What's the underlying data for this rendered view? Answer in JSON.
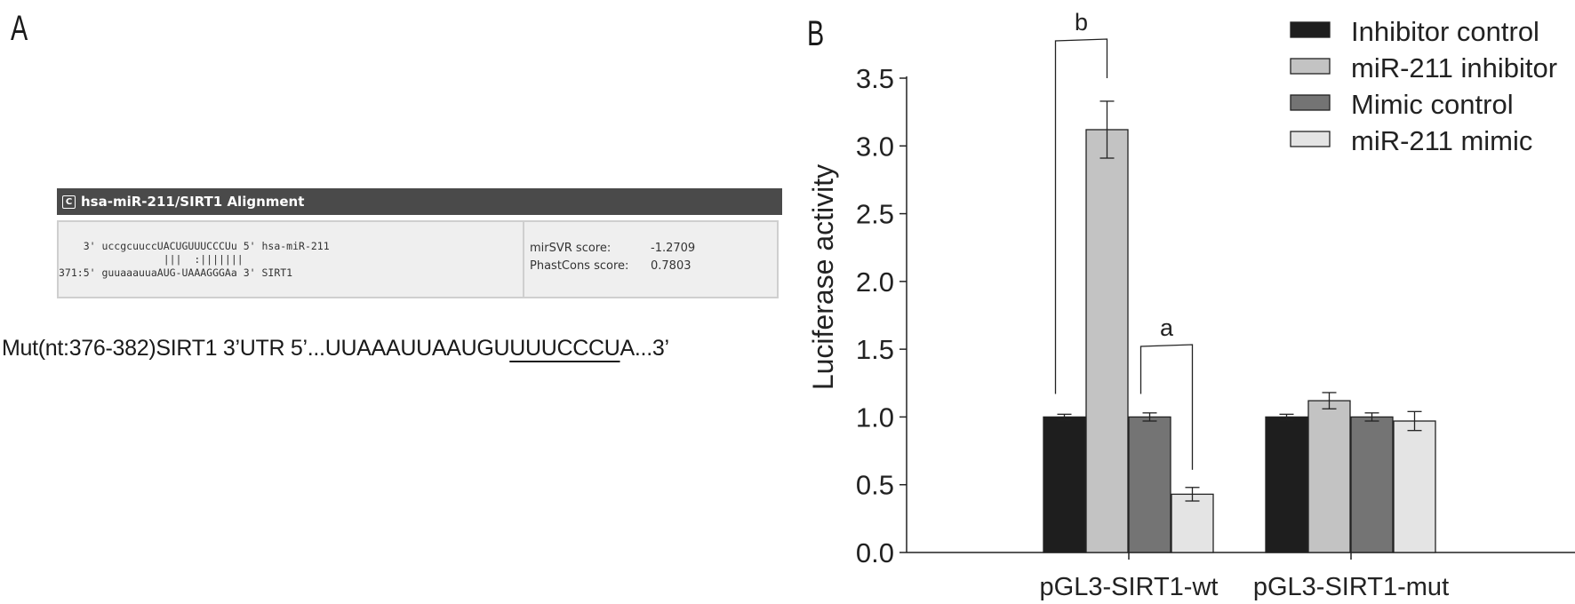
{
  "panels": {
    "a_label": "A",
    "b_label": "B"
  },
  "alignment": {
    "title": "hsa-miR-211/SIRT1 Alignment",
    "icon": "c-badge-icon",
    "lines": [
      "    3' uccgcuuccUACUGUUUCCCUu 5' hsa-miR-211",
      "                 |||  :|||||||",
      "371:5' guuaaauuaAUG-UAAAGGGAa 3' SIRT1"
    ],
    "scores": [
      {
        "label": "mirSVR score:",
        "value": "-1.2709"
      },
      {
        "label": "PhastCons score:",
        "value": "0.7803"
      }
    ]
  },
  "mutation": {
    "prefix": "Mut(nt:376-382)SIRT1 3’UTR 5’...UUAAAUUAAUGU",
    "underlined": "UUUCCCU",
    "suffix": "A...3’"
  },
  "chart_data": {
    "type": "bar",
    "ylabel": "Luciferase activity",
    "xlabel": "",
    "ylim": [
      0,
      3.5
    ],
    "yticks": [
      "0.0",
      "0.5",
      "1.0",
      "1.5",
      "2.0",
      "2.5",
      "3.0",
      "3.5"
    ],
    "categories": [
      "pGL3-SIRT1-wt",
      "pGL3-SIRT1-mut"
    ],
    "series": [
      {
        "name": "Inhibitor control",
        "values": [
          1.0,
          1.0
        ],
        "errors": [
          0.02,
          0.02
        ],
        "color": "#1e1e1e"
      },
      {
        "name": "miR-211 inhibitor",
        "values": [
          3.12,
          1.12
        ],
        "errors": [
          0.21,
          0.06
        ],
        "color": "#c3c3c3"
      },
      {
        "name": "Mimic control",
        "values": [
          1.0,
          1.0
        ],
        "errors": [
          0.03,
          0.03
        ],
        "color": "#747474"
      },
      {
        "name": "miR-211 mimic",
        "values": [
          0.43,
          0.97
        ],
        "errors": [
          0.05,
          0.07
        ],
        "color": "#e4e4e4"
      }
    ],
    "legend_position": "top-right",
    "significance": [
      {
        "label": "b",
        "category": 0,
        "from_series": 0,
        "to_series": 1
      },
      {
        "label": "a",
        "category": 0,
        "from_series": 2,
        "to_series": 3
      }
    ],
    "grid": false
  }
}
